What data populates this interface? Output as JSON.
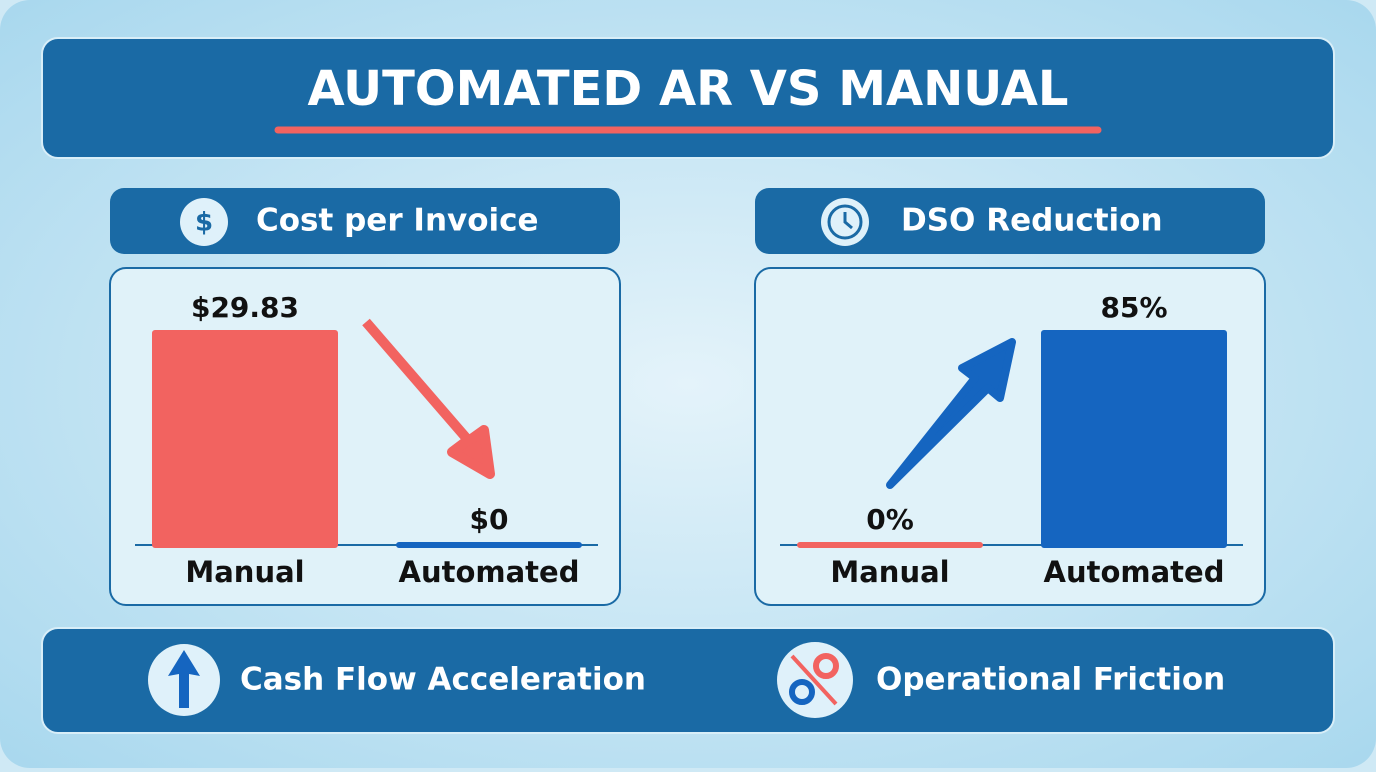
{
  "header": {
    "title": "AUTOMATED AR VS MANUAL"
  },
  "chart_data": [
    {
      "type": "bar",
      "title": "Cost per Invoice",
      "categories": [
        "Manual",
        "Automated"
      ],
      "values": [
        29.83,
        0
      ],
      "value_labels": [
        "$29.83",
        "$0"
      ],
      "colors": [
        "#f26360",
        "#1565c0"
      ]
    },
    {
      "type": "bar",
      "title": "DSO Reduction",
      "categories": [
        "Manual",
        "Automated"
      ],
      "values": [
        0,
        85
      ],
      "value_labels": [
        "0%",
        "85%"
      ],
      "colors": [
        "#f26360",
        "#1565c0"
      ]
    }
  ],
  "footer": {
    "items": [
      "Cash Flow Acceleration",
      "Operational Friction"
    ]
  }
}
